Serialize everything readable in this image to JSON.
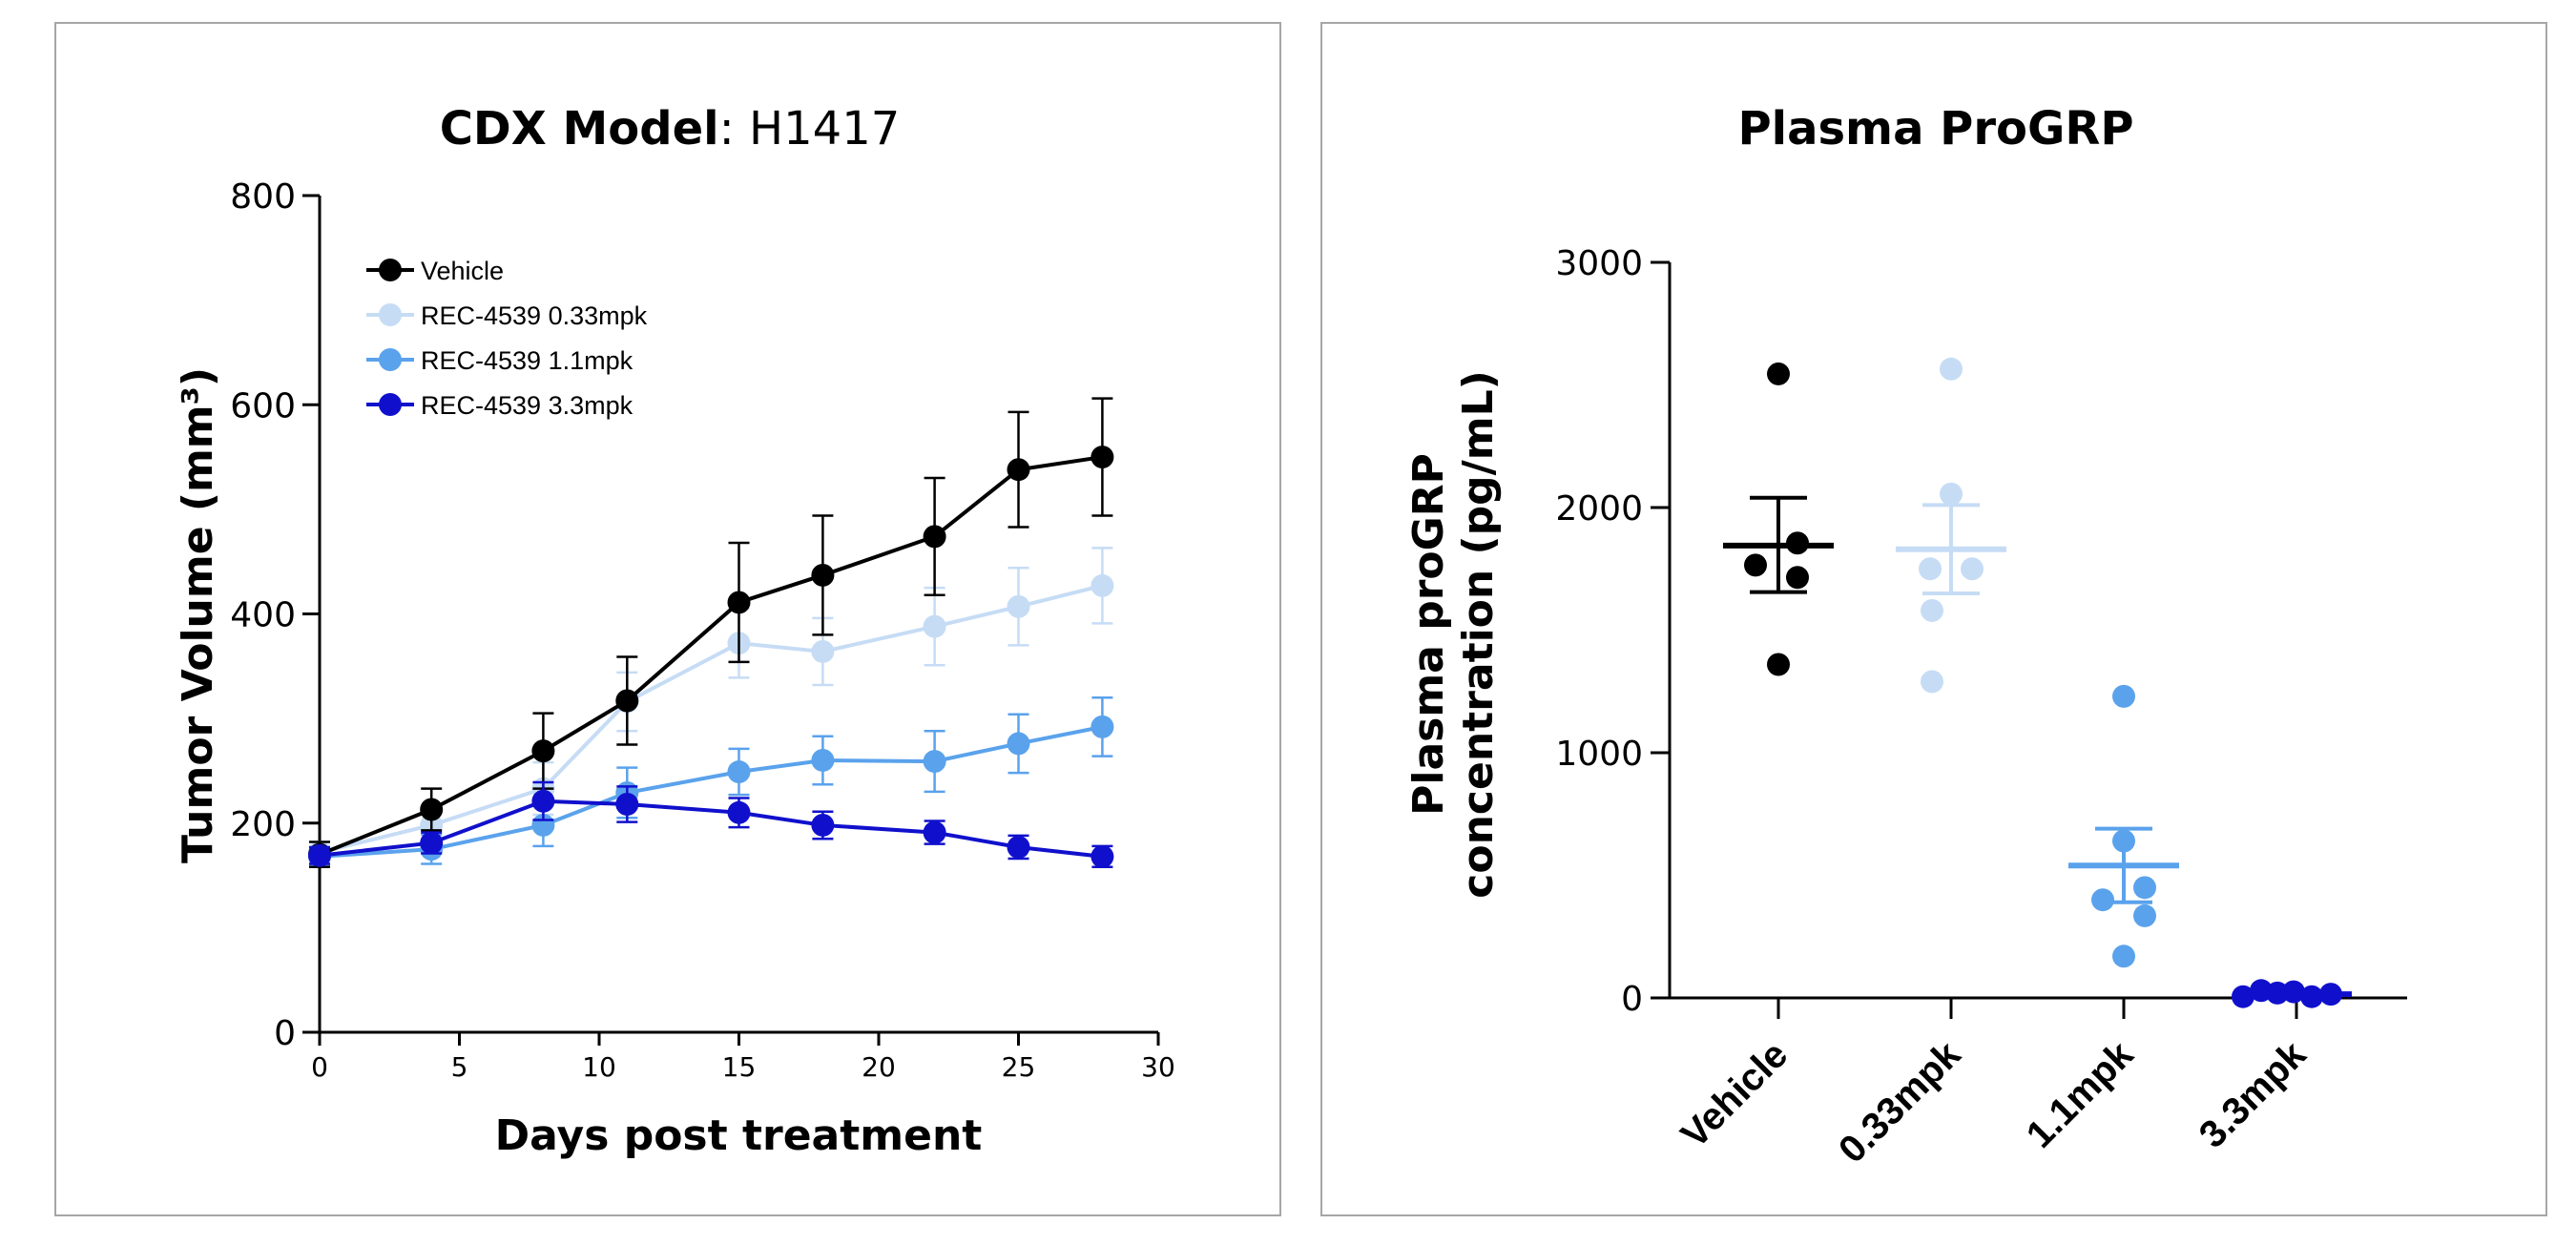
{
  "chart_data": [
    {
      "type": "line",
      "title_bold": "CDX Model",
      "title_rest": ": H1417",
      "xlabel": "Days post treatment",
      "ylabel": "Tumor Volume (mm³)",
      "xlim": [
        0,
        30
      ],
      "ylim": [
        0,
        800
      ],
      "xticks": [
        0,
        5,
        10,
        15,
        20,
        25,
        30
      ],
      "yticks": [
        0,
        200,
        400,
        600,
        800
      ],
      "legend_position": "top-left",
      "series": [
        {
          "name": "Vehicle",
          "color": "#000000",
          "x": [
            0,
            4,
            8,
            11,
            15,
            18,
            22,
            25,
            28
          ],
          "y": [
            170,
            213,
            269,
            317,
            411,
            437,
            474,
            538,
            550
          ],
          "err": [
            12,
            20,
            36,
            42,
            57,
            57,
            56,
            55,
            56
          ]
        },
        {
          "name": "REC-4539 0.33mpk",
          "color": "#c6dcf5",
          "x": [
            0,
            4,
            8,
            11,
            15,
            18,
            22,
            25,
            28
          ],
          "y": [
            172,
            198,
            233,
            316,
            372,
            364,
            388,
            407,
            427
          ],
          "err": [
            10,
            16,
            25,
            28,
            33,
            32,
            37,
            37,
            36
          ]
        },
        {
          "name": "REC-4539 1.1mpk",
          "color": "#5aa2ec",
          "x": [
            0,
            4,
            8,
            11,
            15,
            18,
            22,
            25,
            28
          ],
          "y": [
            168,
            175,
            198,
            229,
            249,
            260,
            259,
            276,
            292
          ],
          "err": [
            8,
            14,
            20,
            24,
            22,
            23,
            29,
            28,
            28
          ]
        },
        {
          "name": "REC-4539 3.3mpk",
          "color": "#1010cc",
          "x": [
            0,
            4,
            8,
            11,
            15,
            18,
            22,
            25,
            28
          ],
          "y": [
            169,
            181,
            221,
            218,
            210,
            198,
            191,
            177,
            168
          ],
          "err": [
            8,
            10,
            18,
            17,
            14,
            13,
            11,
            11,
            10
          ]
        }
      ]
    },
    {
      "type": "scatter",
      "title": "Plasma ProGRP",
      "ylabel_line1": "Plasma proGRP",
      "ylabel_line2": "concentration (pg/mL)",
      "xlabel": "",
      "ylim": [
        0,
        3000
      ],
      "yticks": [
        0,
        1000,
        2000,
        3000
      ],
      "categories": [
        "Vehicle",
        "0.33mpk",
        "1.1mpk",
        "3.3mpk"
      ],
      "groups": [
        {
          "name": "Vehicle",
          "color": "#000000",
          "mean": 1845,
          "sem_low": 1655,
          "sem_high": 2040,
          "points": [
            2545,
            1765,
            1855,
            1715,
            1360
          ]
        },
        {
          "name": "0.33mpk",
          "color": "#c6dcf5",
          "mean": 1830,
          "sem_low": 1650,
          "sem_high": 2010,
          "points": [
            2565,
            2055,
            1750,
            1750,
            1580,
            1290
          ]
        },
        {
          "name": "1.1mpk",
          "color": "#5aa2ec",
          "mean": 540,
          "sem_low": 390,
          "sem_high": 690,
          "points": [
            1230,
            640,
            400,
            450,
            335,
            170
          ]
        },
        {
          "name": "3.3mpk",
          "color": "#1010cc",
          "mean": 15,
          "sem_low": 5,
          "sem_high": 25,
          "points": [
            5,
            30,
            20,
            25,
            5,
            15
          ]
        }
      ]
    }
  ]
}
